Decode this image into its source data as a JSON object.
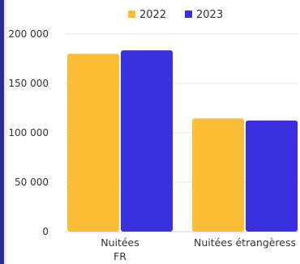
{
  "chart_data": {
    "type": "bar",
    "categories": [
      "Nuitées FR",
      "Nuitées étrangèress"
    ],
    "category_lines": [
      [
        "Nuitées",
        "FR"
      ],
      [
        "Nuitées étrangèress"
      ]
    ],
    "series": [
      {
        "name": "2022",
        "color": "#fbbd35",
        "values": [
          180000,
          114500
        ]
      },
      {
        "name": "2023",
        "color": "#3a31de",
        "values": [
          183500,
          112500
        ]
      }
    ],
    "ylim": [
      0,
      200000
    ],
    "yticks": [
      0,
      50000,
      100000,
      150000,
      200000
    ],
    "ytick_labels": [
      "0",
      "50 000",
      "100 000",
      "150 000",
      "200 000"
    ],
    "grid": true,
    "legend_position": "top"
  }
}
